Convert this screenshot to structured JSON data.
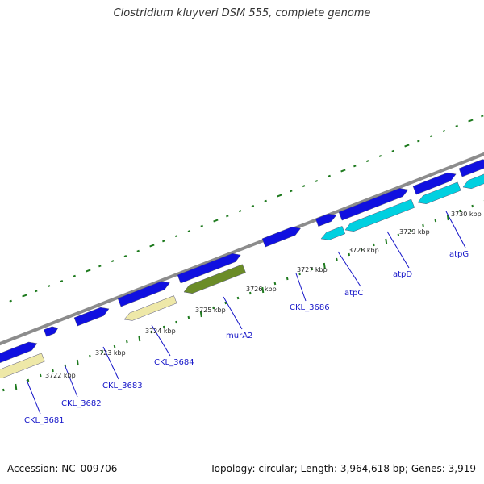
{
  "title": "Clostridium kluyveri DSM 555, complete genome",
  "footer": {
    "accession": "Accession: NC_009706",
    "summary": "Topology: circular; Length: 3,964,618 bp; Genes: 3,919"
  },
  "colors": {
    "backbone": "#8c8c8c",
    "ticks": "#1e7a1e",
    "forward_gene": "#1010e0",
    "reverse_gene": "#00d0e0",
    "reverse_other": "#eee8a8",
    "rna_or_special": "#6b8c28",
    "label": "#1414c8"
  },
  "kbp_labels": [
    "3722 kbp",
    "3723 kbp",
    "3724 kbp",
    "3725 kbp",
    "3726 kbp",
    "3727 kbp",
    "3728 kbp",
    "3729 kbp",
    "3730 kbp"
  ],
  "gene_labels": [
    "CKL_3681",
    "CKL_3682",
    "CKL_3683",
    "CKL_3684",
    "murA2",
    "CKL_3686",
    "atpC",
    "atpD",
    "atpG"
  ]
}
